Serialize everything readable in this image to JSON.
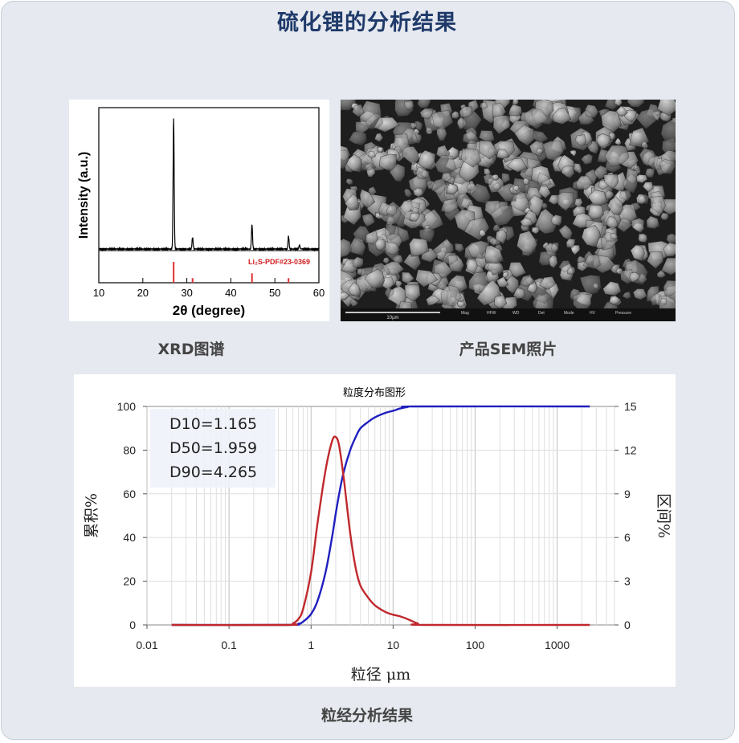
{
  "page_title": "硫化锂的分析结果",
  "captions": {
    "xrd": "XRD图谱",
    "sem": "产品SEM照片",
    "psd": "粒经分析结果"
  },
  "sem": {
    "scale_bar": "10μm",
    "info_labels": [
      "Mag",
      "HFW",
      "WD",
      "Det",
      "Mode",
      "HV",
      "Pressure"
    ]
  },
  "chart_data": [
    {
      "type": "line",
      "name": "xrd",
      "xlabel": "2θ (degree)",
      "ylabel": "Intensity (a.u.)",
      "xlim": [
        10,
        60
      ],
      "x_ticks": [
        10,
        20,
        30,
        40,
        50,
        60
      ],
      "reference_label": "Li₂S-PDF#23-0369",
      "peaks": [
        {
          "x": 27.0,
          "intensity": 1.0
        },
        {
          "x": 31.3,
          "intensity": 0.09
        },
        {
          "x": 44.8,
          "intensity": 0.19
        },
        {
          "x": 53.1,
          "intensity": 0.1
        },
        {
          "x": 55.6,
          "intensity": 0.03
        }
      ],
      "reference_peaks": [
        {
          "x": 27.0,
          "intensity": 1.0
        },
        {
          "x": 31.3,
          "intensity": 0.22
        },
        {
          "x": 44.8,
          "intensity": 0.45
        },
        {
          "x": 53.1,
          "intensity": 0.22
        }
      ],
      "colors": {
        "pattern": "#000000",
        "reference": "#e03030"
      }
    },
    {
      "type": "line",
      "name": "psd",
      "title": "粒度分布图形",
      "xlabel": "粒径 μm",
      "ylabel_left": "累积%",
      "ylabel_right": "区间%",
      "x_scale": "log",
      "xlim": [
        0.01,
        5000
      ],
      "x_ticks": [
        "0.01",
        "0.1",
        "1",
        "10",
        "100",
        "1000"
      ],
      "ylim_left": [
        0,
        100
      ],
      "y_ticks_left": [
        0,
        20,
        40,
        60,
        80,
        100
      ],
      "ylim_right": [
        0,
        15
      ],
      "y_ticks_right": [
        0,
        3,
        6,
        9,
        12,
        15
      ],
      "grid": true,
      "stats": [
        "D10=1.165",
        "D50=1.959",
        "D90=4.265"
      ],
      "series": [
        {
          "axis": "left",
          "color": "#1f1fbf",
          "x": [
            0.02,
            0.5,
            0.7,
            0.8,
            1.0,
            1.2,
            1.5,
            1.8,
            2.0,
            2.2,
            2.5,
            3.0,
            3.5,
            4.0,
            5.0,
            6.0,
            8.0,
            10.0,
            12.0,
            15.0,
            20.0,
            2500
          ],
          "y": [
            0,
            0,
            0.5,
            1.5,
            5,
            11,
            24,
            40,
            51,
            60,
            70,
            80,
            86,
            90,
            93,
            95,
            97,
            98,
            99,
            99.7,
            100,
            100
          ]
        },
        {
          "axis": "right",
          "color": "#c0282d",
          "x": [
            0.02,
            0.5,
            0.6,
            0.7,
            0.8,
            1.0,
            1.2,
            1.5,
            1.8,
            2.0,
            2.2,
            2.5,
            3.0,
            3.5,
            4.0,
            5.0,
            6.0,
            8.0,
            10.0,
            12.0,
            15.0,
            20.0,
            25.0,
            2500
          ],
          "y": [
            0,
            0,
            0.1,
            0.4,
            1.1,
            3.6,
            7.0,
            10.6,
            12.6,
            12.9,
            12.3,
            10.1,
            6.3,
            3.9,
            2.7,
            1.85,
            1.35,
            0.9,
            0.7,
            0.6,
            0.4,
            0.1,
            0,
            0
          ]
        }
      ]
    }
  ]
}
